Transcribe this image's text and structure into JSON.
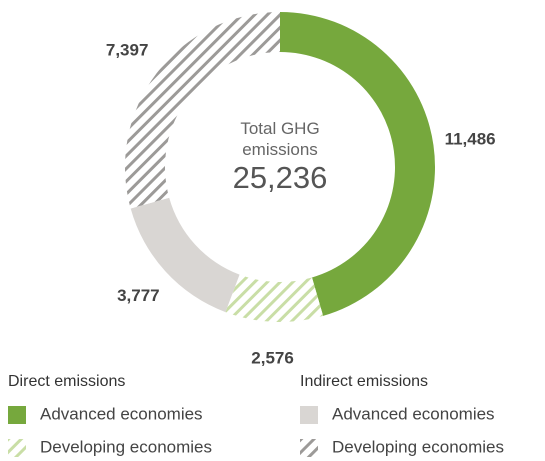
{
  "chart_data": {
    "type": "donut",
    "center_title": "Total GHG emissions",
    "total": {
      "value": 25236,
      "label": "25,236"
    },
    "series": [
      {
        "name": "Direct emissions",
        "categories": [
          "Advanced economies",
          "Developing economies"
        ],
        "values": [
          11486,
          2576
        ],
        "value_labels": [
          "11,486",
          "2,576"
        ],
        "colors": [
          "#76a83d",
          "#c9dea6"
        ],
        "patterns": [
          "solid",
          "hatch"
        ]
      },
      {
        "name": "Indirect emissions",
        "categories": [
          "Advanced economies",
          "Developing economies"
        ],
        "values": [
          3777,
          7397
        ],
        "value_labels": [
          "3,777",
          "7,397"
        ],
        "colors": [
          "#d9d6d3",
          "#9c9a98"
        ],
        "patterns": [
          "solid",
          "hatch"
        ]
      }
    ]
  }
}
